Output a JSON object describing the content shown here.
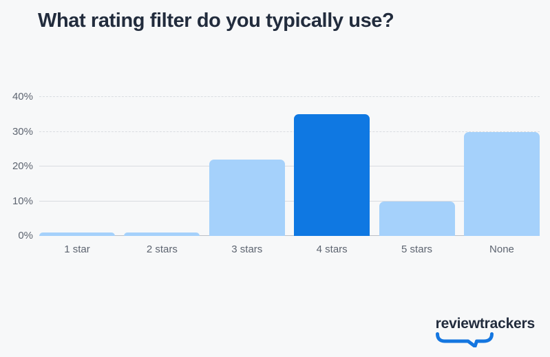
{
  "page": {
    "background_color": "#f7f8f9"
  },
  "header": {
    "title": "What rating filter do you typically use?",
    "title_color": "#222c3d"
  },
  "chart_data": {
    "type": "bar",
    "title": "What rating filter do you typically use?",
    "categories": [
      "1 star",
      "2 stars",
      "3 stars",
      "4 stars",
      "5 stars",
      "None"
    ],
    "values": [
      1,
      1,
      22,
      35,
      10,
      30
    ],
    "unit": "%",
    "highlight_index": 3,
    "bar_color": "#a5d1fb",
    "highlight_color": "#0f78e2",
    "xlabel": "",
    "ylabel": "",
    "ylim": [
      0,
      40
    ],
    "yticks": [
      {
        "value": 0,
        "label": "0%",
        "style": "solid-dark"
      },
      {
        "value": 10,
        "label": "10%",
        "style": "solid"
      },
      {
        "value": 20,
        "label": "20%",
        "style": "solid"
      },
      {
        "value": 30,
        "label": "30%",
        "style": "dashed"
      },
      {
        "value": 40,
        "label": "40%",
        "style": "dashed"
      }
    ],
    "grid": true,
    "legend": false,
    "label_color": "#5d6470",
    "gridline_color": "#d9dce1",
    "baseline_color": "#bcc0c6"
  },
  "footer": {
    "logo_text": "reviewtrackers",
    "logo_text_color": "#222c3d",
    "logo_mark": "speech-bubble-underline",
    "logo_mark_color": "#1476e0"
  }
}
